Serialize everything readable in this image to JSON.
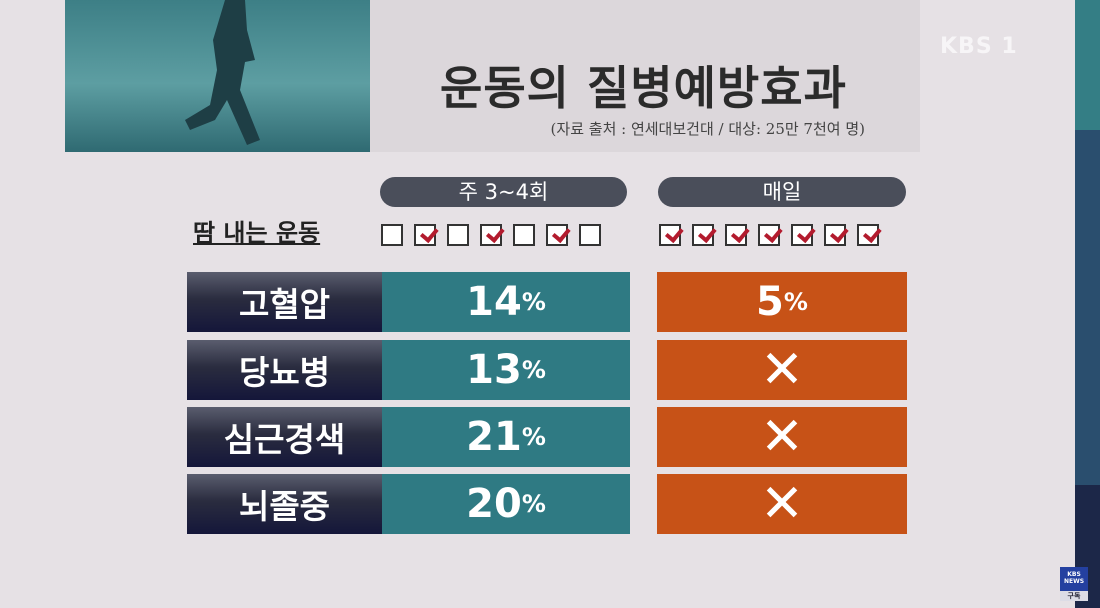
{
  "title": "운동의 질병예방효과",
  "source": "(자료 출처 : 연세대보건대 / 대상: 25만 7천여 명)",
  "broadcaster": "KBS 1",
  "columns": [
    {
      "label": "주 3~4회",
      "checked": [
        false,
        true,
        false,
        true,
        false,
        true,
        false
      ]
    },
    {
      "label": "매일",
      "checked": [
        true,
        true,
        true,
        true,
        true,
        true,
        true
      ]
    }
  ],
  "row_header": "땀 내는 운동",
  "rows": [
    {
      "disease": "고혈압",
      "weekly": "14",
      "daily": "5",
      "daily_effect": true
    },
    {
      "disease": "당뇨병",
      "weekly": "13",
      "daily": "✕",
      "daily_effect": false
    },
    {
      "disease": "심근경색",
      "weekly": "21",
      "daily": "✕",
      "daily_effect": false
    },
    {
      "disease": "뇌졸중",
      "weekly": "20",
      "daily": "✕",
      "daily_effect": false
    }
  ],
  "percent_sign": "%",
  "badge": {
    "brand": "KBS NEWS",
    "label": "구독"
  },
  "colors": {
    "weekly": "#2f7a83",
    "daily": "#c75217",
    "check": "#b31b2e"
  }
}
